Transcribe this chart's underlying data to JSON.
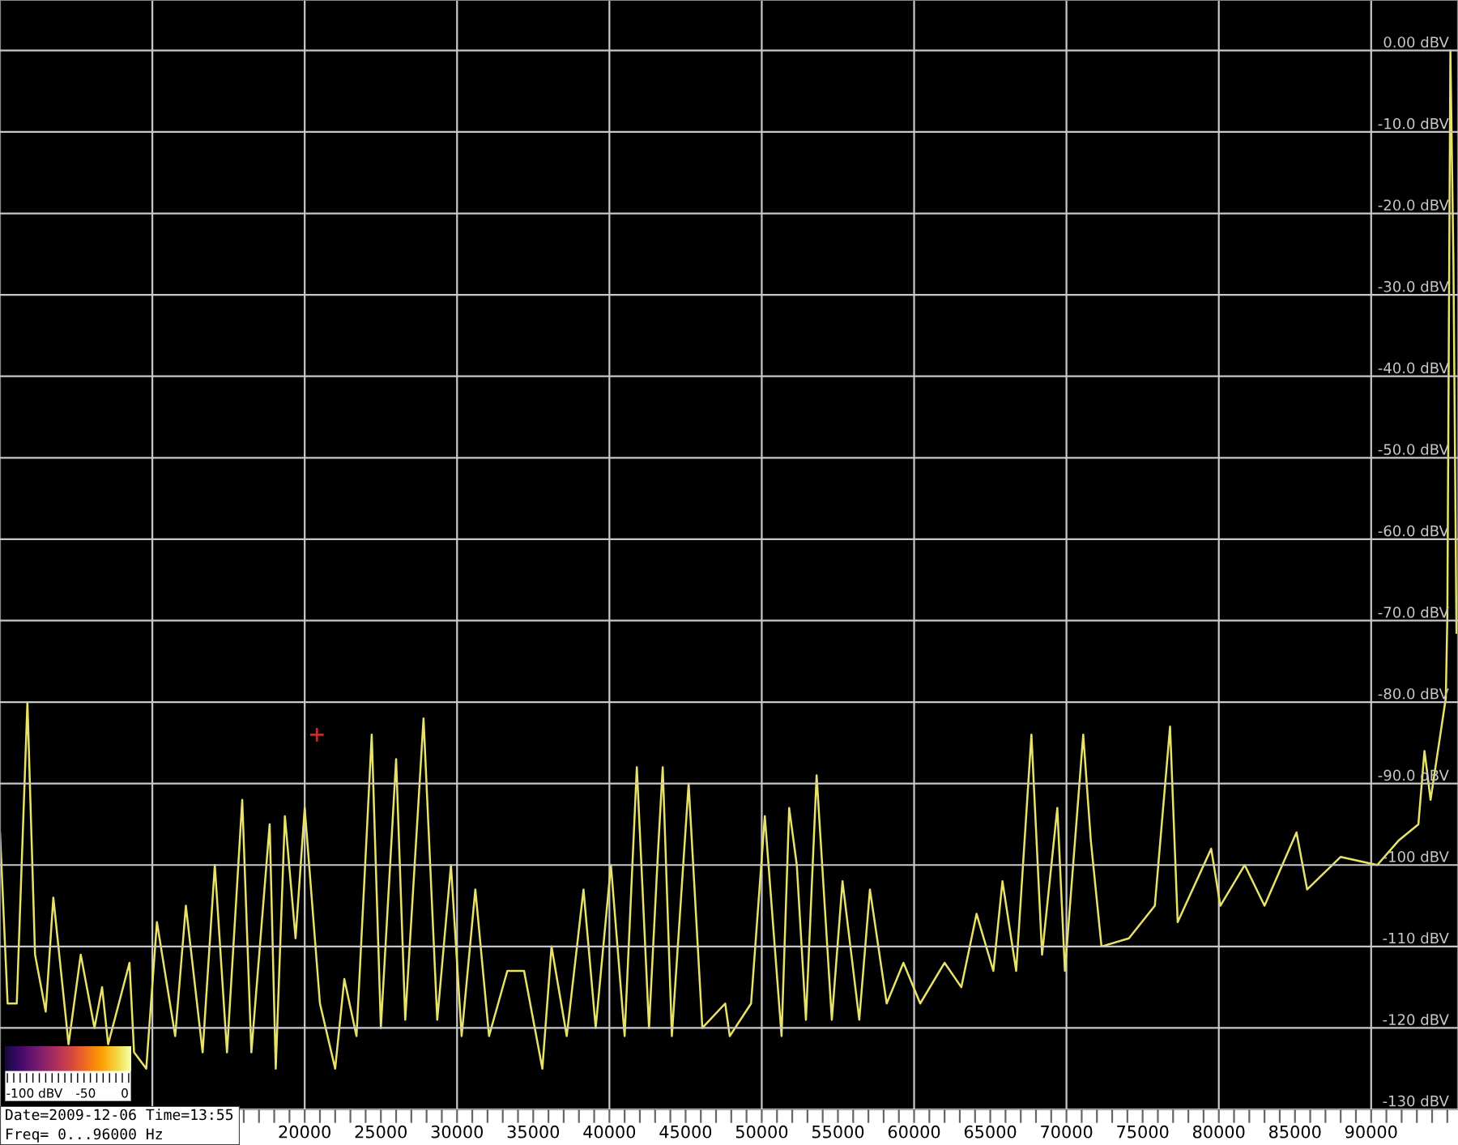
{
  "chart_data": {
    "type": "line",
    "x": [
      0,
      500,
      1100,
      1800,
      2300,
      3000,
      3500,
      4500,
      5300,
      6200,
      6700,
      7100,
      8500,
      8800,
      9600,
      10300,
      11500,
      12200,
      13300,
      14100,
      14900,
      15900,
      16500,
      17700,
      18100,
      18700,
      19400,
      20000,
      21000,
      22000,
      22600,
      23400,
      24400,
      25000,
      26000,
      26600,
      27800,
      28700,
      29600,
      30300,
      31200,
      32100,
      33300,
      34400,
      35600,
      36200,
      37200,
      38300,
      39100,
      40100,
      41000,
      41800,
      42600,
      43200,
      43500,
      44100,
      45200,
      46100,
      47600,
      47900,
      49300,
      50200,
      51300,
      51800,
      52300,
      52900,
      53600,
      54600,
      55300,
      56400,
      57100,
      58200,
      59300,
      60400,
      62000,
      63100,
      64100,
      65200,
      65800,
      66700,
      67700,
      68400,
      69400,
      69900,
      71100,
      71600,
      72300,
      74100,
      75800,
      76800,
      77300,
      79500,
      80100,
      81700,
      83000,
      85100,
      85800,
      88000,
      90400,
      91800,
      93100,
      93500,
      93900,
      94900,
      95000,
      95200,
      95400,
      95600
    ],
    "series": [
      {
        "color": "#e8e26a",
        "values": [
          -96,
          -117,
          -117,
          -80,
          -111,
          -118,
          -104,
          -122,
          -111,
          -120,
          -115,
          -122,
          -112,
          -123,
          -125,
          -107,
          -121,
          -105,
          -123,
          -100,
          -123,
          -92,
          -123,
          -95,
          -125,
          -94,
          -109,
          -93,
          -117,
          -125,
          -114,
          -121,
          -84,
          -120,
          -87,
          -119,
          -82,
          -119,
          -100,
          -121,
          -103,
          -121,
          -113,
          -113,
          -125,
          -110,
          -121,
          -103,
          -120,
          -100,
          -121,
          -88,
          -120,
          -98,
          -88,
          -121,
          -90,
          -120,
          -117,
          -121,
          -117,
          -94,
          -121,
          -93,
          -100,
          -119,
          -89,
          -119,
          -102,
          -119,
          -103,
          -117,
          -112,
          -117,
          -112,
          -115,
          -106,
          -113,
          -102,
          -113,
          -84,
          -111,
          -93,
          -113,
          -84,
          -97,
          -110,
          -109,
          -105,
          -83,
          -107,
          -98,
          -105,
          -100,
          -105,
          -96,
          -103,
          -99,
          -100,
          -97,
          -95,
          -86,
          -92,
          -79.5,
          -69.5,
          0,
          -26,
          -71.5
        ]
      }
    ],
    "xlim": [
      0,
      95700
    ],
    "ylim": [
      -130,
      6.2
    ],
    "xticks": [
      {
        "value": 0,
        "label": null
      },
      {
        "value": 1000,
        "label": null
      },
      {
        "value": 2000,
        "label": null
      },
      {
        "value": 3000,
        "label": null
      },
      {
        "value": 4000,
        "label": null
      },
      {
        "value": 5000,
        "label": null
      },
      {
        "value": 6000,
        "label": null
      },
      {
        "value": 7000,
        "label": null
      },
      {
        "value": 8000,
        "label": null
      },
      {
        "value": 9000,
        "label": null
      },
      {
        "value": 10000,
        "label": null
      },
      {
        "value": 11000,
        "label": null
      },
      {
        "value": 12000,
        "label": null
      },
      {
        "value": 13000,
        "label": null
      },
      {
        "value": 14000,
        "label": null
      },
      {
        "value": 15000,
        "label": null
      },
      {
        "value": 16000,
        "label": null
      },
      {
        "value": 17000,
        "label": null
      },
      {
        "value": 18000,
        "label": null
      },
      {
        "value": 19000,
        "label": null
      },
      20000,
      {
        "value": 21000,
        "label": null
      },
      {
        "value": 22000,
        "label": null
      },
      {
        "value": 23000,
        "label": null
      },
      {
        "value": 24000,
        "label": null
      },
      25000,
      {
        "value": 26000,
        "label": null
      },
      {
        "value": 27000,
        "label": null
      },
      {
        "value": 28000,
        "label": null
      },
      {
        "value": 29000,
        "label": null
      },
      30000,
      {
        "value": 31000,
        "label": null
      },
      {
        "value": 32000,
        "label": null
      },
      {
        "value": 33000,
        "label": null
      },
      {
        "value": 34000,
        "label": null
      },
      35000,
      {
        "value": 36000,
        "label": null
      },
      {
        "value": 37000,
        "label": null
      },
      {
        "value": 38000,
        "label": null
      },
      {
        "value": 39000,
        "label": null
      },
      40000,
      {
        "value": 41000,
        "label": null
      },
      {
        "value": 42000,
        "label": null
      },
      {
        "value": 43000,
        "label": null
      },
      {
        "value": 44000,
        "label": null
      },
      45000,
      {
        "value": 46000,
        "label": null
      },
      {
        "value": 47000,
        "label": null
      },
      {
        "value": 48000,
        "label": null
      },
      {
        "value": 49000,
        "label": null
      },
      50000,
      {
        "value": 51000,
        "label": null
      },
      {
        "value": 52000,
        "label": null
      },
      {
        "value": 53000,
        "label": null
      },
      {
        "value": 54000,
        "label": null
      },
      55000,
      {
        "value": 56000,
        "label": null
      },
      {
        "value": 57000,
        "label": null
      },
      {
        "value": 58000,
        "label": null
      },
      {
        "value": 59000,
        "label": null
      },
      60000,
      {
        "value": 61000,
        "label": null
      },
      {
        "value": 62000,
        "label": null
      },
      {
        "value": 63000,
        "label": null
      },
      {
        "value": 64000,
        "label": null
      },
      65000,
      {
        "value": 66000,
        "label": null
      },
      {
        "value": 67000,
        "label": null
      },
      {
        "value": 68000,
        "label": null
      },
      {
        "value": 69000,
        "label": null
      },
      70000,
      {
        "value": 71000,
        "label": null
      },
      {
        "value": 72000,
        "label": null
      },
      {
        "value": 73000,
        "label": null
      },
      {
        "value": 74000,
        "label": null
      },
      75000,
      {
        "value": 76000,
        "label": null
      },
      {
        "value": 77000,
        "label": null
      },
      {
        "value": 78000,
        "label": null
      },
      {
        "value": 79000,
        "label": null
      },
      80000,
      {
        "value": 81000,
        "label": null
      },
      {
        "value": 82000,
        "label": null
      },
      {
        "value": 83000,
        "label": null
      },
      {
        "value": 84000,
        "label": null
      },
      85000,
      {
        "value": 86000,
        "label": null
      },
      {
        "value": 87000,
        "label": null
      },
      {
        "value": 88000,
        "label": null
      },
      {
        "value": 89000,
        "label": null
      },
      90000,
      {
        "value": 91000,
        "label": null
      },
      {
        "value": 92000,
        "label": null
      },
      {
        "value": 93000,
        "label": null
      },
      {
        "value": 94000,
        "label": null
      },
      {
        "value": 95000,
        "label": null
      }
    ],
    "yticks": [
      {
        "value": 0,
        "label": "0.00 dBV"
      },
      {
        "value": -10,
        "label": "-10.0 dBV"
      },
      {
        "value": -20,
        "label": "-20.0 dBV"
      },
      {
        "value": -30,
        "label": "-30.0 dBV"
      },
      {
        "value": -40,
        "label": "-40.0 dBV"
      },
      {
        "value": -50,
        "label": "-50.0 dBV"
      },
      {
        "value": -60,
        "label": "-60.0 dBV"
      },
      {
        "value": -70,
        "label": "-70.0 dBV"
      },
      {
        "value": -80,
        "label": "-80.0 dBV"
      },
      {
        "value": -90,
        "label": "-90.0 dBV"
      },
      {
        "value": -100,
        "label": "-100 dBV"
      },
      {
        "value": -110,
        "label": "-110 dBV"
      },
      {
        "value": -120,
        "label": "-120 dBV"
      },
      {
        "value": -130,
        "label": "-130 dBV"
      }
    ],
    "grid": "y",
    "ref_lines": [
      {
        "axis": "x",
        "value": 10000,
        "color": "#c8c8c8"
      },
      {
        "axis": "x",
        "value": 20000,
        "color": "#c8c8c8"
      },
      {
        "axis": "x",
        "value": 30000,
        "color": "#c8c8c8"
      },
      {
        "axis": "x",
        "value": 40000,
        "color": "#c8c8c8"
      },
      {
        "axis": "x",
        "value": 50000,
        "color": "#c8c8c8"
      },
      {
        "axis": "x",
        "value": 60000,
        "color": "#c8c8c8"
      },
      {
        "axis": "x",
        "value": 70000,
        "color": "#c8c8c8"
      },
      {
        "axis": "x",
        "value": 80000,
        "color": "#c8c8c8"
      },
      {
        "axis": "x",
        "value": 90000,
        "color": "#c8c8c8"
      }
    ],
    "annotations": [
      "Date=2009-12-06 Time=13:55",
      "Freq= 0...96000 Hz",
      "-100 dBV",
      "-50",
      "0"
    ]
  }
}
